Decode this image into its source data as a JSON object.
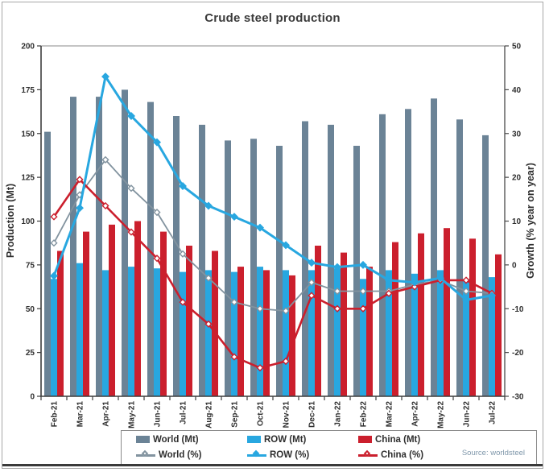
{
  "window": {
    "title": "Crude steel production"
  },
  "chart_data": {
    "type": "bar+line",
    "title": "Crude steel production",
    "categories": [
      "Feb-21",
      "Mar-21",
      "Apr-21",
      "May-21",
      "Jun-21",
      "Jul-21",
      "Aug-21",
      "Sep-21",
      "Oct-21",
      "Nov-21",
      "Dec-21",
      "Jan-22",
      "Feb-22",
      "Mar-22",
      "Apr-22",
      "May-22",
      "Jun-22",
      "Jul-22"
    ],
    "bar_series": [
      {
        "name": "World (Mt)",
        "axis": "left",
        "color": "#6b8396",
        "values": [
          151,
          171,
          171,
          175,
          168,
          160,
          155,
          146,
          147,
          143,
          157,
          155,
          143,
          161,
          164,
          170,
          158,
          149
        ]
      },
      {
        "name": "ROW (Mt)",
        "axis": "left",
        "color": "#28a7e0",
        "values": [
          67,
          76,
          72,
          74,
          73,
          71,
          72,
          71,
          74,
          72,
          72,
          73,
          67,
          72,
          70,
          72,
          67,
          68
        ]
      },
      {
        "name": "China (Mt)",
        "axis": "left",
        "color": "#cb1f2d",
        "values": [
          83,
          94,
          98,
          100,
          94,
          86,
          83,
          74,
          72,
          69,
          86,
          82,
          74,
          88,
          93,
          96,
          90,
          81
        ]
      }
    ],
    "line_series": [
      {
        "name": "World (%)",
        "axis": "right",
        "color": "#82939f",
        "marker": "open-diamond",
        "values": [
          5,
          16,
          24,
          17.5,
          12,
          2.5,
          -3,
          -8.5,
          -10,
          -10.5,
          -4,
          -6,
          -6,
          -6,
          -4.5,
          -3.5,
          -6,
          -6.5
        ]
      },
      {
        "name": "ROW (%)",
        "axis": "right",
        "color": "#28a7e0",
        "marker": "solid-diamond",
        "values": [
          -2.5,
          13,
          43,
          34,
          28,
          18,
          13.5,
          11,
          8.5,
          4.5,
          0.5,
          -0.5,
          0,
          -3.5,
          -4,
          -3,
          -8,
          -7
        ]
      },
      {
        "name": "China (%)",
        "axis": "right",
        "color": "#cb1f2d",
        "marker": "open-diamond",
        "values": [
          11,
          19.5,
          13.5,
          7.5,
          1.5,
          -8.5,
          -13.5,
          -21,
          -23.5,
          -22,
          -7,
          -10,
          -10,
          -6.5,
          -5,
          -3.5,
          -3.5,
          -6.5
        ]
      }
    ],
    "left_axis": {
      "label": "Production (Mt)",
      "min": 0,
      "max": 200,
      "step": 25
    },
    "right_axis": {
      "label": "Growth (% year on year)",
      "min": -30,
      "max": 50,
      "step": 10
    },
    "grid": false,
    "legend_position": "bottom",
    "source": "Source: worldsteel"
  }
}
